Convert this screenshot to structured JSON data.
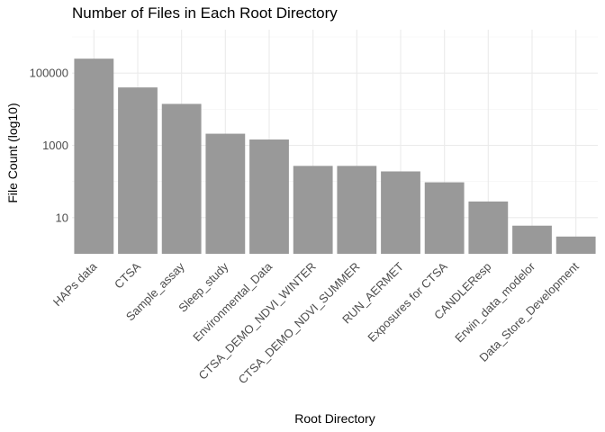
{
  "chart_data": {
    "type": "bar",
    "title": "Number of Files in Each Root Directory",
    "xlabel": "Root Directory",
    "ylabel": "File Count (log10)",
    "yscale": "log10",
    "ylim": [
      1,
      1000000
    ],
    "yticks": [
      10,
      1000,
      100000
    ],
    "ytick_labels": [
      "10",
      "1000",
      "100000"
    ],
    "grid": true,
    "bar_color": "#999999",
    "categories": [
      "HAPs data",
      "CTSA",
      "Sample_assay",
      "Sleep_study",
      "Environmental_Data",
      "CTSA_DEMO_NDVI_WINTER",
      "CTSA_DEMO_NDVI_SUMMER",
      "RUN_AERMET",
      "Exposures for CTSA",
      "CANDLEResp",
      "Erwin_data_modelor",
      "Data_Store_Development"
    ],
    "values": [
      250000,
      40000,
      14000,
      2100,
      1450,
      270,
      270,
      190,
      95,
      28,
      6,
      3
    ]
  }
}
